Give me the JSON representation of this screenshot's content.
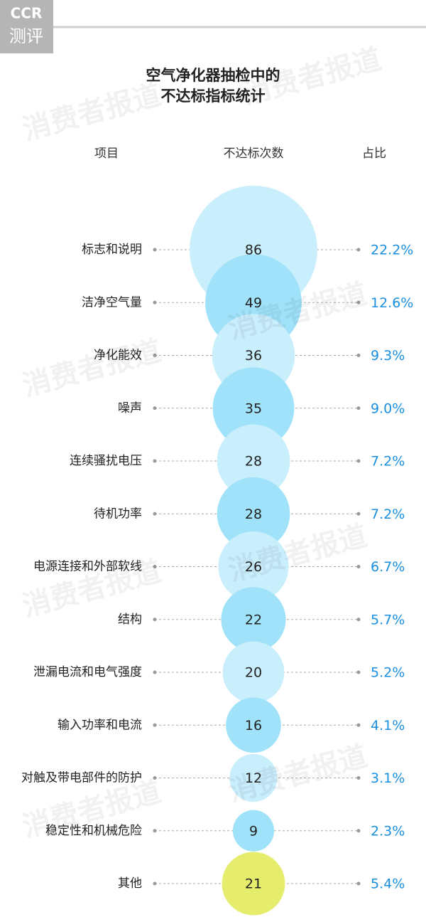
{
  "logo": {
    "mark": "CCR",
    "text": "测评"
  },
  "watermark": "消费者报道",
  "chart_data": {
    "type": "bubble",
    "title_lines": [
      "空气净化器抽检中的",
      "不达标指标统计"
    ],
    "category_header": "项目",
    "categories": [
      "标志和说明",
      "洁净空气量",
      "净化能效",
      "噪声",
      "连续骚扰电压",
      "待机功率",
      "电源连接和外部软线",
      "结构",
      "泄漏电流和电气强度",
      "输入功率和电流",
      "对触及带电部件的防护",
      "稳定性和机械危险",
      "其他"
    ],
    "series": [
      {
        "name": "不达标次数",
        "values": [
          86,
          49,
          36,
          35,
          28,
          28,
          26,
          22,
          20,
          16,
          12,
          9,
          21
        ],
        "colors": [
          "#c9eefc",
          "#9fe2f9",
          "#c9eefc",
          "#9fe2f9",
          "#c9eefc",
          "#9fe2f9",
          "#c9eefc",
          "#9fe2f9",
          "#c9eefc",
          "#9fe2f9",
          "#c9eefc",
          "#9fe2f9",
          "#e6ec6c"
        ]
      },
      {
        "name": "占比",
        "color": "#1a8fe0",
        "values": [
          22.2,
          12.6,
          9.3,
          9.0,
          7.2,
          7.2,
          6.7,
          5.7,
          5.2,
          4.1,
          3.1,
          2.3,
          5.4
        ],
        "value_labels": [
          "22.2%",
          "12.6%",
          "9.3%",
          "9.0%",
          "7.2%",
          "7.2%",
          "6.7%",
          "5.7%",
          "5.2%",
          "4.1%",
          "3.1%",
          "2.3%",
          "5.4%"
        ]
      }
    ]
  }
}
